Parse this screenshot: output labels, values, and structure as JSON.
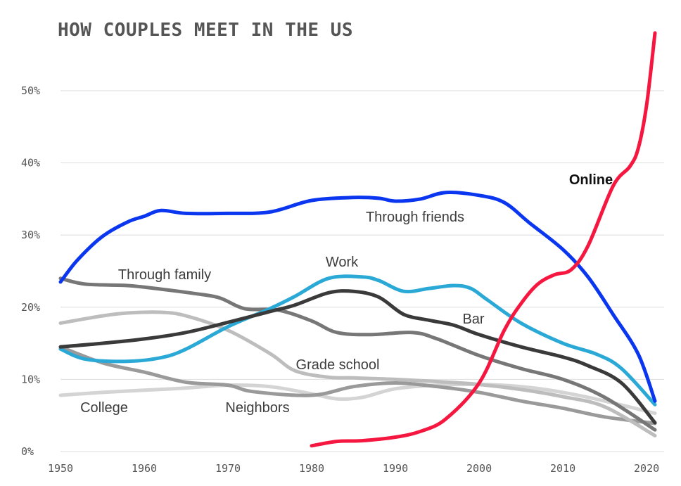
{
  "chart_data": {
    "type": "line",
    "title": "HOW COUPLES MEET IN THE US",
    "xlim": [
      1950,
      2022
    ],
    "ylim": [
      0,
      58
    ],
    "x_ticks": [
      "1950",
      "1960",
      "1970",
      "1980",
      "1990",
      "2000",
      "2010",
      "2020"
    ],
    "y_ticks": [
      "0%",
      "10%",
      "20%",
      "30%",
      "40%",
      "50%"
    ],
    "grid": "horizontal",
    "series": [
      {
        "name": "College",
        "color": "#d4d4d4",
        "points": [
          [
            1950,
            7.8
          ],
          [
            1955,
            8.2
          ],
          [
            1960,
            8.5
          ],
          [
            1965,
            8.8
          ],
          [
            1970,
            9.2
          ],
          [
            1975,
            9.0
          ],
          [
            1980,
            8.0
          ],
          [
            1983,
            7.3
          ],
          [
            1986,
            7.5
          ],
          [
            1990,
            8.7
          ],
          [
            1995,
            9.2
          ],
          [
            2000,
            9.3
          ],
          [
            2005,
            9.0
          ],
          [
            2010,
            8.2
          ],
          [
            2015,
            7.0
          ],
          [
            2021,
            5.3
          ]
        ]
      },
      {
        "name": "Neighbors",
        "color": "#9a9a9a",
        "points": [
          [
            1950,
            14.5
          ],
          [
            1955,
            12.3
          ],
          [
            1960,
            11.0
          ],
          [
            1965,
            9.6
          ],
          [
            1970,
            9.2
          ],
          [
            1973,
            8.3
          ],
          [
            1980,
            7.8
          ],
          [
            1985,
            9.0
          ],
          [
            1990,
            9.5
          ],
          [
            1995,
            9.0
          ],
          [
            2000,
            8.2
          ],
          [
            2005,
            7.0
          ],
          [
            2010,
            6.0
          ],
          [
            2015,
            4.8
          ],
          [
            2021,
            3.9
          ]
        ]
      },
      {
        "name": "Grade school",
        "color": "#bdbdbd",
        "points": [
          [
            1950,
            17.8
          ],
          [
            1955,
            18.8
          ],
          [
            1958,
            19.2
          ],
          [
            1962,
            19.3
          ],
          [
            1965,
            18.8
          ],
          [
            1970,
            16.8
          ],
          [
            1975,
            13.6
          ],
          [
            1978,
            11.2
          ],
          [
            1982,
            10.3
          ],
          [
            1985,
            10.2
          ],
          [
            1990,
            10.0
          ],
          [
            1995,
            9.7
          ],
          [
            2000,
            9.3
          ],
          [
            2005,
            8.6
          ],
          [
            2010,
            7.6
          ],
          [
            2015,
            6.2
          ],
          [
            2021,
            2.2
          ]
        ]
      },
      {
        "name": "Through family",
        "color": "#777777",
        "points": [
          [
            1950,
            24.0
          ],
          [
            1953,
            23.2
          ],
          [
            1958,
            23.0
          ],
          [
            1962,
            22.5
          ],
          [
            1966,
            21.9
          ],
          [
            1969,
            21.3
          ],
          [
            1972,
            19.8
          ],
          [
            1976,
            19.6
          ],
          [
            1980,
            18.1
          ],
          [
            1983,
            16.5
          ],
          [
            1987,
            16.2
          ],
          [
            1992,
            16.5
          ],
          [
            1995,
            15.6
          ],
          [
            2000,
            13.3
          ],
          [
            2005,
            11.5
          ],
          [
            2010,
            10.0
          ],
          [
            2015,
            7.5
          ],
          [
            2021,
            3.0
          ]
        ]
      },
      {
        "name": "Work",
        "color": "#2aa9d6",
        "points": [
          [
            1950,
            14.2
          ],
          [
            1953,
            12.8
          ],
          [
            1958,
            12.5
          ],
          [
            1962,
            13.0
          ],
          [
            1965,
            14.2
          ],
          [
            1970,
            17.3
          ],
          [
            1975,
            19.8
          ],
          [
            1978,
            21.5
          ],
          [
            1982,
            24.0
          ],
          [
            1986,
            24.2
          ],
          [
            1988,
            23.7
          ],
          [
            1991,
            22.2
          ],
          [
            1994,
            22.6
          ],
          [
            1997,
            23.0
          ],
          [
            1999,
            22.6
          ],
          [
            2001,
            21.0
          ],
          [
            2005,
            17.8
          ],
          [
            2010,
            15.0
          ],
          [
            2014,
            13.5
          ],
          [
            2017,
            11.5
          ],
          [
            2021,
            6.5
          ]
        ]
      },
      {
        "name": "Bar",
        "color": "#3a3a3a",
        "points": [
          [
            1950,
            14.5
          ],
          [
            1955,
            15.0
          ],
          [
            1960,
            15.6
          ],
          [
            1965,
            16.5
          ],
          [
            1970,
            17.9
          ],
          [
            1975,
            19.4
          ],
          [
            1978,
            20.3
          ],
          [
            1982,
            22.0
          ],
          [
            1985,
            22.2
          ],
          [
            1988,
            21.4
          ],
          [
            1991,
            19.0
          ],
          [
            1994,
            18.2
          ],
          [
            1997,
            17.5
          ],
          [
            2000,
            16.2
          ],
          [
            2005,
            14.5
          ],
          [
            2010,
            13.1
          ],
          [
            2013,
            11.9
          ],
          [
            2017,
            9.5
          ],
          [
            2021,
            4.0
          ]
        ]
      },
      {
        "name": "Through friends",
        "color": "#0a36ef",
        "points": [
          [
            1950,
            23.5
          ],
          [
            1952,
            26.5
          ],
          [
            1955,
            29.8
          ],
          [
            1958,
            31.8
          ],
          [
            1960,
            32.6
          ],
          [
            1962,
            33.4
          ],
          [
            1965,
            33.0
          ],
          [
            1970,
            33.0
          ],
          [
            1975,
            33.2
          ],
          [
            1980,
            34.8
          ],
          [
            1985,
            35.2
          ],
          [
            1988,
            35.1
          ],
          [
            1990,
            34.7
          ],
          [
            1993,
            35.0
          ],
          [
            1996,
            35.9
          ],
          [
            2000,
            35.5
          ],
          [
            2003,
            34.5
          ],
          [
            2006,
            31.7
          ],
          [
            2010,
            28.0
          ],
          [
            2013,
            24.2
          ],
          [
            2016,
            19.0
          ],
          [
            2019,
            13.5
          ],
          [
            2021,
            7.0
          ]
        ]
      },
      {
        "name": "Online",
        "color": "#f5173f",
        "points": [
          [
            1980,
            0.8
          ],
          [
            1983,
            1.4
          ],
          [
            1986,
            1.5
          ],
          [
            1990,
            2.0
          ],
          [
            1993,
            2.8
          ],
          [
            1996,
            4.5
          ],
          [
            2000,
            9.5
          ],
          [
            2003,
            16.8
          ],
          [
            2005,
            20.5
          ],
          [
            2007,
            23.2
          ],
          [
            2009,
            24.5
          ],
          [
            2011,
            25.2
          ],
          [
            2013,
            28.5
          ],
          [
            2016,
            36.8
          ],
          [
            2018,
            39.5
          ],
          [
            2019,
            42.0
          ],
          [
            2020,
            48.0
          ],
          [
            2021,
            58.0
          ]
        ]
      }
    ],
    "annotations": [
      "College",
      "Neighbors",
      "Grade school",
      "Through family",
      "Work",
      "Bar",
      "Through friends",
      "Online"
    ]
  }
}
